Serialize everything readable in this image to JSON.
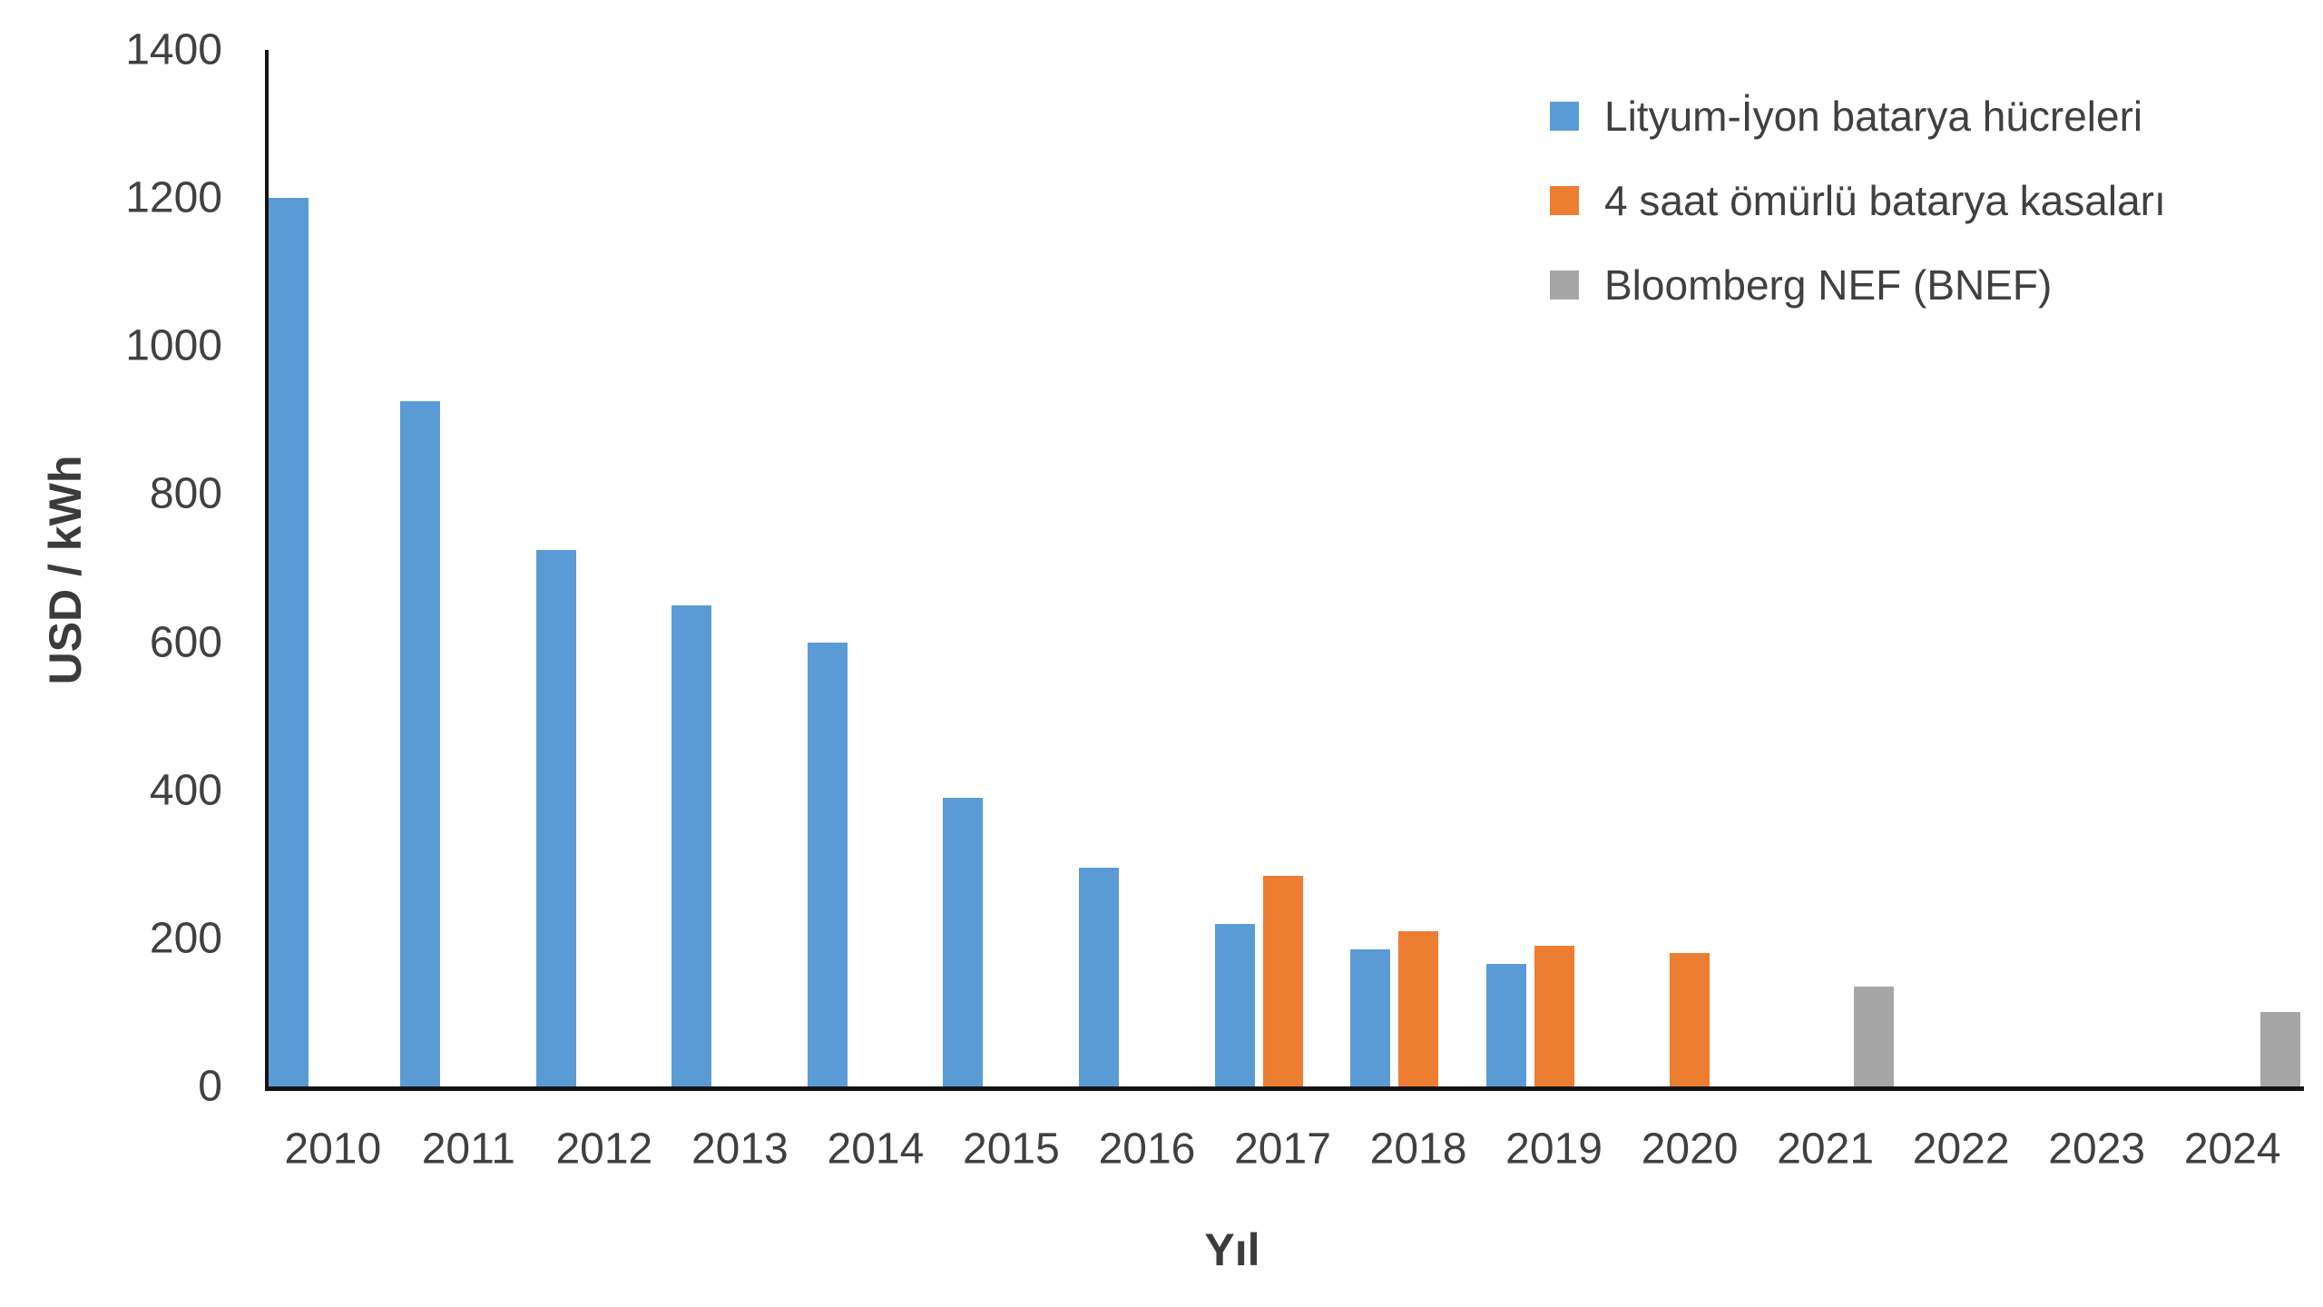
{
  "chart_data": {
    "type": "bar",
    "title": "",
    "xlabel": "Yıl",
    "ylabel": "USD / kWh",
    "categories": [
      "2010",
      "2011",
      "2012",
      "2013",
      "2014",
      "2015",
      "2016",
      "2017",
      "2018",
      "2019",
      "2020",
      "2021",
      "2022",
      "2023",
      "2024"
    ],
    "series": [
      {
        "name": "Lityum-İyon batarya hücreleri",
        "color": "#5B9BD5",
        "values": [
          1200,
          925,
          725,
          650,
          600,
          390,
          295,
          220,
          185,
          165,
          null,
          null,
          null,
          null,
          null
        ]
      },
      {
        "name": "4 saat ömürlü batarya kasaları",
        "color": "#ED7D31",
        "values": [
          null,
          null,
          null,
          null,
          null,
          null,
          null,
          285,
          210,
          190,
          180,
          null,
          null,
          null,
          null
        ]
      },
      {
        "name": "Bloomberg NEF (BNEF)",
        "color": "#A6A6A6",
        "values": [
          null,
          null,
          null,
          null,
          null,
          null,
          null,
          null,
          null,
          null,
          null,
          135,
          null,
          null,
          100
        ]
      }
    ],
    "yticks": [
      0,
      200,
      400,
      600,
      800,
      1000,
      1200,
      1400
    ],
    "ylim": [
      0,
      1400
    ],
    "grid": false,
    "legend_position": "top-right",
    "axis_line_color": "#141414",
    "tick_text_color": "#404040",
    "background_color": "#ffffff"
  }
}
